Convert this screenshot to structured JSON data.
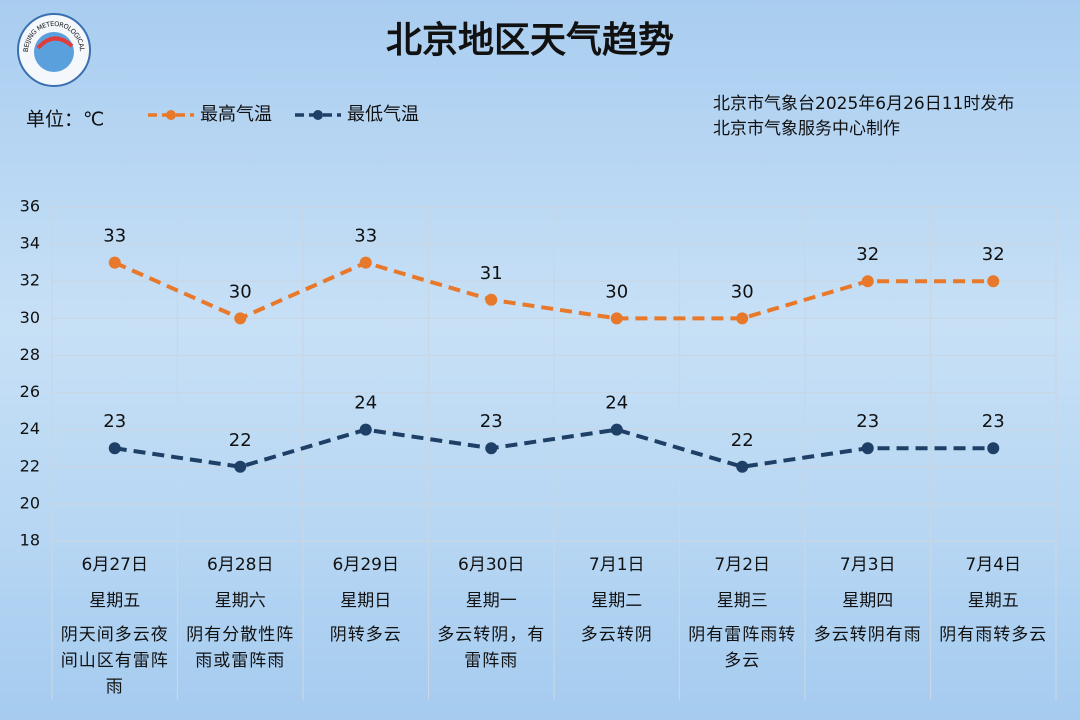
{
  "chart_data": {
    "type": "line",
    "title": "北京地区天气趋势",
    "logo_text": "BEIJING METEOROLOGICAL SERVICE",
    "unit_label": "单位：℃",
    "issuer": "北京市气象台2025年6月26日11时发布",
    "producer": "北京市气象服务中心制作",
    "categories": [
      "6月27日",
      "6月28日",
      "6月29日",
      "6月30日",
      "7月1日",
      "7月2日",
      "7月3日",
      "7月4日"
    ],
    "weekdays": [
      "星期五",
      "星期六",
      "星期日",
      "星期一",
      "星期二",
      "星期三",
      "星期四",
      "星期五"
    ],
    "weather": [
      "阴天间多云夜间山区有雷阵雨",
      "阴有分散性阵雨或雷阵雨",
      "阴转多云",
      "多云转阴，有雷阵雨",
      "多云转阴",
      "阴有雷阵雨转多云",
      "多云转阴有雨",
      "阴有雨转多云"
    ],
    "series": [
      {
        "name": "最高气温",
        "color": "#e8782a",
        "values": [
          33,
          30,
          33,
          31,
          30,
          30,
          32,
          32
        ]
      },
      {
        "name": "最低气温",
        "color": "#1e3f66",
        "values": [
          23,
          22,
          24,
          23,
          24,
          22,
          23,
          23
        ]
      }
    ],
    "ylim": [
      18,
      36
    ],
    "yticks": [
      18,
      20,
      22,
      24,
      26,
      28,
      30,
      32,
      34,
      36
    ],
    "grid": true
  }
}
